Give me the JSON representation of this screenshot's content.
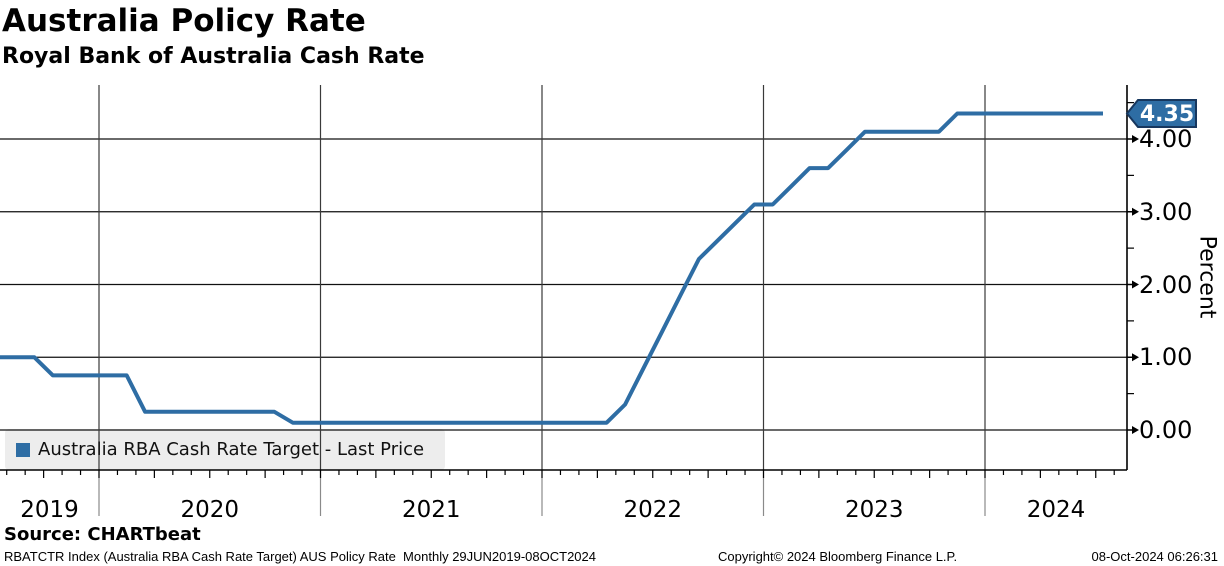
{
  "header": {
    "title": "Australia Policy Rate",
    "subtitle": "Royal Bank of Australia Cash Rate"
  },
  "chart_data": {
    "type": "line",
    "title": "Australia Policy Rate",
    "subtitle": "Royal Bank of Australia Cash Rate",
    "series_name": "Australia RBA Cash Rate Target - Last Price",
    "ylabel": "Percent",
    "ylim": [
      -0.55,
      4.75
    ],
    "grid": true,
    "legend_position": "bottom-left",
    "line_color": "#2E6DA4",
    "badge_border_color": "#17375E",
    "last_value": 4.35,
    "last_value_label": "4.35",
    "y_major_ticks": [
      {
        "value": 0,
        "label": "0.00"
      },
      {
        "value": 1,
        "label": "1.00"
      },
      {
        "value": 2,
        "label": "2.00"
      },
      {
        "value": 3,
        "label": "3.00"
      },
      {
        "value": 4,
        "label": "4.00"
      }
    ],
    "y_minor_ticks": [
      0.5,
      1.5,
      2.5,
      3.5,
      4.5
    ],
    "x_year_labels": [
      "2019",
      "2020",
      "2021",
      "2022",
      "2023",
      "2024"
    ],
    "x_range": [
      "2019-07",
      "2024-10"
    ],
    "points": [
      [
        "2019-07",
        1.0
      ],
      [
        "2019-08",
        1.0
      ],
      [
        "2019-09",
        1.0
      ],
      [
        "2019-10",
        0.75
      ],
      [
        "2019-11",
        0.75
      ],
      [
        "2019-12",
        0.75
      ],
      [
        "2020-01",
        0.75
      ],
      [
        "2020-02",
        0.75
      ],
      [
        "2020-03",
        0.25
      ],
      [
        "2020-04",
        0.25
      ],
      [
        "2020-05",
        0.25
      ],
      [
        "2020-06",
        0.25
      ],
      [
        "2020-07",
        0.25
      ],
      [
        "2020-08",
        0.25
      ],
      [
        "2020-09",
        0.25
      ],
      [
        "2020-10",
        0.25
      ],
      [
        "2020-11",
        0.1
      ],
      [
        "2020-12",
        0.1
      ],
      [
        "2021-01",
        0.1
      ],
      [
        "2021-02",
        0.1
      ],
      [
        "2021-03",
        0.1
      ],
      [
        "2021-04",
        0.1
      ],
      [
        "2021-05",
        0.1
      ],
      [
        "2021-06",
        0.1
      ],
      [
        "2021-07",
        0.1
      ],
      [
        "2021-08",
        0.1
      ],
      [
        "2021-09",
        0.1
      ],
      [
        "2021-10",
        0.1
      ],
      [
        "2021-11",
        0.1
      ],
      [
        "2021-12",
        0.1
      ],
      [
        "2022-01",
        0.1
      ],
      [
        "2022-02",
        0.1
      ],
      [
        "2022-03",
        0.1
      ],
      [
        "2022-04",
        0.1
      ],
      [
        "2022-05",
        0.35
      ],
      [
        "2022-06",
        0.85
      ],
      [
        "2022-07",
        1.35
      ],
      [
        "2022-08",
        1.85
      ],
      [
        "2022-09",
        2.35
      ],
      [
        "2022-10",
        2.6
      ],
      [
        "2022-11",
        2.85
      ],
      [
        "2022-12",
        3.1
      ],
      [
        "2023-01",
        3.1
      ],
      [
        "2023-02",
        3.35
      ],
      [
        "2023-03",
        3.6
      ],
      [
        "2023-04",
        3.6
      ],
      [
        "2023-05",
        3.85
      ],
      [
        "2023-06",
        4.1
      ],
      [
        "2023-07",
        4.1
      ],
      [
        "2023-08",
        4.1
      ],
      [
        "2023-09",
        4.1
      ],
      [
        "2023-10",
        4.1
      ],
      [
        "2023-11",
        4.35
      ],
      [
        "2023-12",
        4.35
      ],
      [
        "2024-01",
        4.35
      ],
      [
        "2024-02",
        4.35
      ],
      [
        "2024-03",
        4.35
      ],
      [
        "2024-04",
        4.35
      ],
      [
        "2024-05",
        4.35
      ],
      [
        "2024-06",
        4.35
      ],
      [
        "2024-07",
        4.35
      ],
      [
        "2024-08",
        4.35
      ],
      [
        "2024-09",
        4.35
      ],
      [
        "2024-10",
        4.35
      ]
    ]
  },
  "legend": {
    "swatch_color": "#2E6DA4"
  },
  "footer": {
    "source": "Source: CHARTbeat",
    "info": "RBATCTR Index (Australia RBA Cash Rate Target) AUS Policy Rate  Monthly 29JUN2019-08OCT2024",
    "copyright": "Copyright© 2024 Bloomberg Finance L.P.",
    "datetime": "08-Oct-2024 06:26:31"
  }
}
